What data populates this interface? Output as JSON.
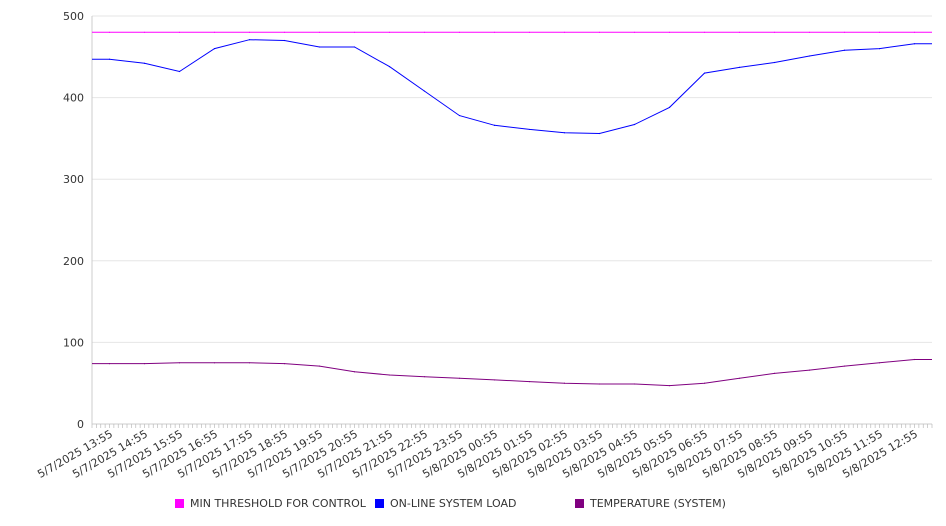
{
  "chart_data": {
    "type": "line",
    "ylim": [
      0,
      500
    ],
    "y_ticks": [
      0,
      100,
      200,
      300,
      400,
      500
    ],
    "grid": true,
    "legend_position": "bottom",
    "x_labels": [
      "5/7/2025 13:55",
      "5/7/2025 14:55",
      "5/7/2025 15:55",
      "5/7/2025 16:55",
      "5/7/2025 17:55",
      "5/7/2025 18:55",
      "5/7/2025 19:55",
      "5/7/2025 20:55",
      "5/7/2025 21:55",
      "5/7/2025 22:55",
      "5/7/2025 23:55",
      "5/8/2025 00:55",
      "5/8/2025 01:55",
      "5/8/2025 02:55",
      "5/8/2025 03:55",
      "5/8/2025 04:55",
      "5/8/2025 05:55",
      "5/8/2025 06:55",
      "5/8/2025 07:55",
      "5/8/2025 08:55",
      "5/8/2025 09:55",
      "5/8/2025 10:55",
      "5/8/2025 11:55",
      "5/8/2025 12:55"
    ],
    "series": [
      {
        "name": "MIN THRESHOLD FOR CONTROL",
        "color": "#ff00ff",
        "values": [
          480,
          480,
          480,
          480,
          480,
          480,
          480,
          480,
          480,
          480,
          480,
          480,
          480,
          480,
          480,
          480,
          480,
          480,
          480,
          480,
          480,
          480,
          480,
          480
        ]
      },
      {
        "name": "ON-LINE SYSTEM LOAD",
        "color": "#0000ff",
        "values": [
          447,
          442,
          432,
          460,
          471,
          470,
          462,
          462,
          438,
          408,
          378,
          366,
          361,
          357,
          356,
          367,
          388,
          430,
          437,
          443,
          451,
          458,
          460,
          466
        ]
      },
      {
        "name": "TEMPERATURE (SYSTEM)",
        "color": "#800080",
        "values": [
          74,
          74,
          75,
          75,
          75,
          74,
          71,
          64,
          60,
          58,
          56,
          54,
          52,
          50,
          49,
          49,
          47,
          50,
          56,
          62,
          66,
          71,
          75,
          79
        ]
      }
    ]
  }
}
